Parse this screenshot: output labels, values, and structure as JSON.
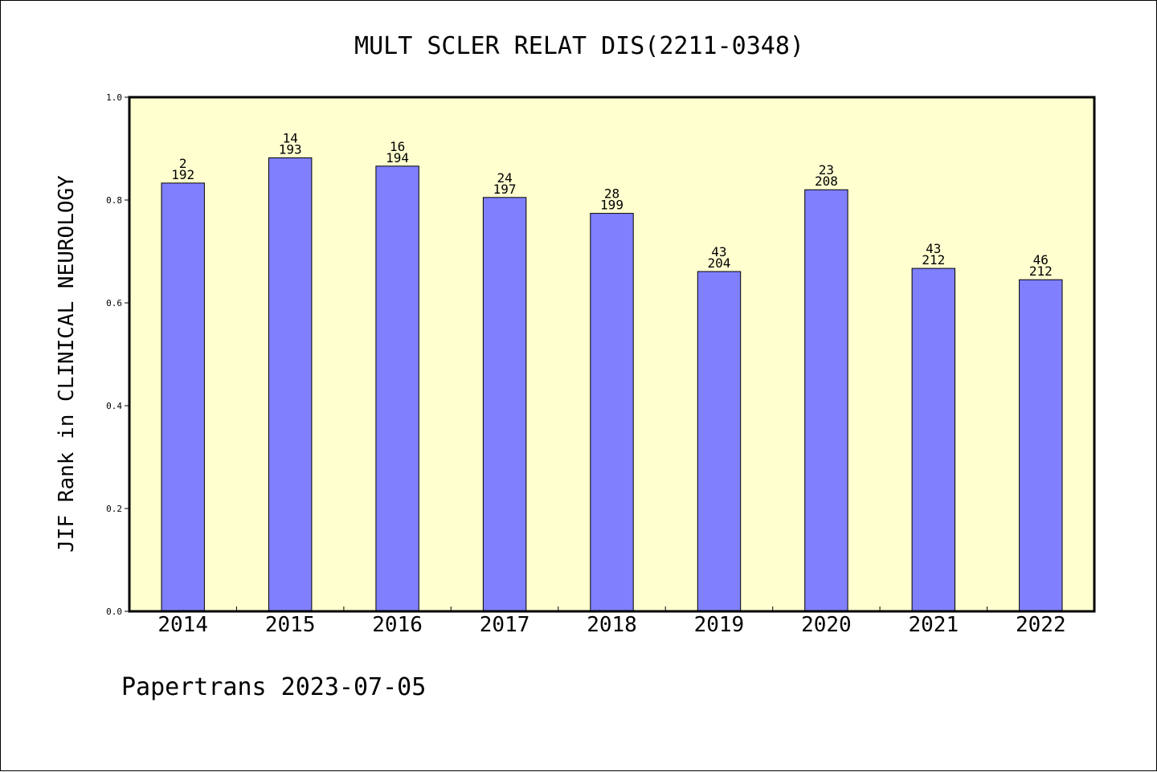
{
  "footer": "Papertrans 2023-07-05",
  "chart_data": {
    "type": "bar",
    "title": "MULT SCLER RELAT DIS(2211-0348)",
    "xlabel": "",
    "ylabel": "JIF Rank in CLINICAL NEUROLOGY",
    "ylim": [
      0,
      1.0
    ],
    "yticks": [
      "0.0",
      "0.2",
      "0.4",
      "0.6",
      "0.8",
      "1.0"
    ],
    "grid": false,
    "colors": {
      "plot_background": "#ffffd0",
      "bar_fill": "#8080ff",
      "bar_stroke": "#000000"
    },
    "categories": [
      "2014",
      "2015",
      "2016",
      "2017",
      "2018",
      "2019",
      "2020",
      "2021",
      "2022"
    ],
    "values": [
      0.833,
      0.882,
      0.866,
      0.805,
      0.774,
      0.661,
      0.82,
      0.667,
      0.645
    ],
    "ranks": [
      "2",
      "14",
      "16",
      "24",
      "28",
      "43",
      "23",
      "43",
      "46"
    ],
    "totals": [
      "192",
      "193",
      "194",
      "197",
      "199",
      "204",
      "208",
      "212",
      "212"
    ]
  }
}
